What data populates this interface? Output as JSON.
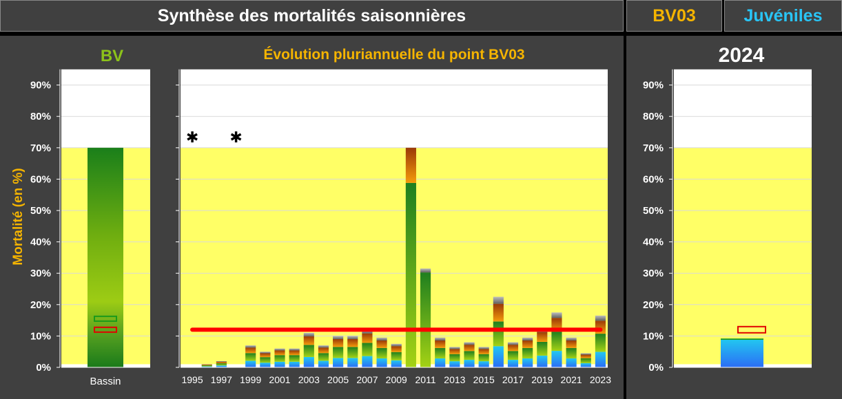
{
  "header": {
    "title": "Synthèse des mortalités saisonnières",
    "point": "BV03",
    "stage": "Juvéniles"
  },
  "colors": {
    "panel": "#404040",
    "title_orange": "#f5b400",
    "title_cyan": "#29c5f6",
    "bv_green": "#8cc21a",
    "zone_yellow": "#ffff66",
    "threshold_red": "#ff0000"
  },
  "panels": {
    "left_title": "BV",
    "middle_title": "Évolution pluriannuelle du point BV03",
    "right_title": "2024"
  },
  "chart_data": [
    {
      "type": "bar",
      "title": "BV",
      "ylabel": "Mortalité (en %)",
      "ylim": [
        0,
        95
      ],
      "yticks": [
        "0%",
        "10%",
        "20%",
        "30%",
        "40%",
        "50%",
        "60%",
        "70%",
        "80%",
        "90%"
      ],
      "categories": [
        "Bassin"
      ],
      "values": [
        70
      ],
      "markers": [
        {
          "value": 15.5,
          "color": "green"
        },
        {
          "value": 12,
          "color": "red"
        }
      ],
      "yellow_zone": [
        1,
        70
      ]
    },
    {
      "type": "bar",
      "title": "Évolution pluriannuelle du point BV03",
      "ylim": [
        0,
        95
      ],
      "x_ticks": [
        "1995",
        "1997",
        "1999",
        "2001",
        "2003",
        "2005",
        "2007",
        "2009",
        "2011",
        "2013",
        "2015",
        "2017",
        "2019",
        "2021",
        "2023"
      ],
      "years": [
        1995,
        1996,
        1997,
        1998,
        1999,
        2000,
        2001,
        2002,
        2003,
        2004,
        2005,
        2006,
        2007,
        2008,
        2009,
        2010,
        2011,
        2012,
        2013,
        2014,
        2015,
        2016,
        2017,
        2018,
        2019,
        2020,
        2021,
        2022,
        2023
      ],
      "values": [
        0,
        1,
        2,
        0,
        7,
        5,
        6,
        6,
        11,
        7,
        10,
        10,
        12,
        9.5,
        7.5,
        70,
        31.5,
        9.5,
        6.5,
        8,
        6.5,
        22.5,
        8,
        9.5,
        12.5,
        17.5,
        9.5,
        4.5,
        16.5
      ],
      "missing_years": [
        1995,
        1998
      ],
      "reference_line": 12,
      "yellow_zone": [
        1,
        70
      ]
    },
    {
      "type": "bar",
      "title": "2024",
      "ylim": [
        0,
        95
      ],
      "yticks": [
        "0%",
        "10%",
        "20%",
        "30%",
        "40%",
        "50%",
        "60%",
        "70%",
        "80%",
        "90%"
      ],
      "values": [
        9
      ],
      "markers": [
        {
          "value": 12,
          "color": "red"
        }
      ],
      "yellow_zone": [
        1,
        70
      ]
    }
  ]
}
